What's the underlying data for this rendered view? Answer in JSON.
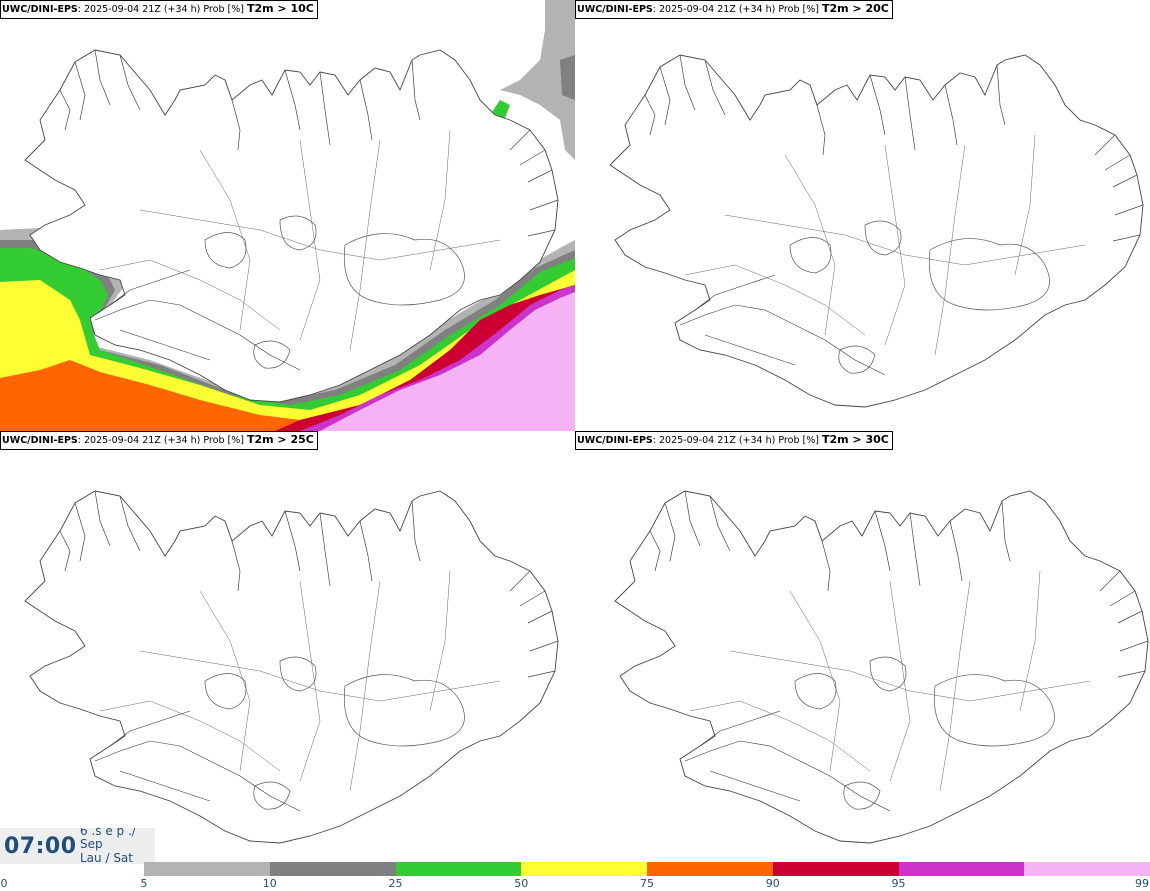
{
  "panels": [
    {
      "model": "UWC/DINI-EPS",
      "info": ": 2025-09-04 21Z (+34 h) Prob [%] ",
      "threshold": "T2m > 10C"
    },
    {
      "model": "UWC/DINI-EPS",
      "info": ": 2025-09-04 21Z (+34 h) Prob [%] ",
      "threshold": "T2m > 20C"
    },
    {
      "model": "UWC/DINI-EPS",
      "info": ": 2025-09-04 21Z (+34 h) Prob [%] ",
      "threshold": "T2m > 25C"
    },
    {
      "model": "UWC/DINI-EPS",
      "info": ": 2025-09-04 21Z (+34 h) Prob [%] ",
      "threshold": "T2m > 30C"
    }
  ],
  "valid_time": {
    "time": "07:00",
    "date_line1": "6 .s e p ./",
    "date_line2": "Sep",
    "date_line3": "Lau / Sat"
  },
  "legend": {
    "ticks": [
      "0",
      "5",
      "10",
      "25",
      "50",
      "75",
      "90",
      "95",
      "99"
    ],
    "colors": [
      "#b3b3b3",
      "#808080",
      "#33cc33",
      "#ffff33",
      "#ff6600",
      "#cc0033",
      "#cc33cc",
      "#f5b3f5"
    ]
  },
  "colors": {
    "prob_5_10": "#b3b3b3",
    "prob_10_25": "#808080",
    "prob_25_50": "#33cc33",
    "prob_50_75": "#ffff33",
    "prob_75_90": "#ff6600",
    "prob_90_95": "#cc0033",
    "prob_95_99": "#cc33cc",
    "prob_99": "#f5b3f5",
    "time_text": "#1f4e79"
  }
}
